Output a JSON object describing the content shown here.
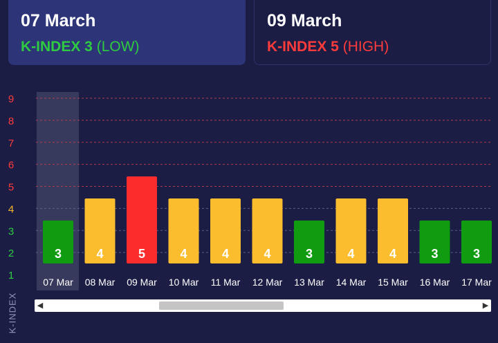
{
  "cards": [
    {
      "date": "07 March",
      "kp_label": "K-INDEX 3",
      "level": "(LOW)",
      "color": "#2ecc40"
    },
    {
      "date": "09 March",
      "kp_label": "K-INDEX 5",
      "level": "(HIGH)",
      "color": "#ff3b3b"
    }
  ],
  "y_axis_title": "K-INDEX",
  "chart_data": {
    "type": "bar",
    "categories": [
      "07 Mar",
      "08 Mar",
      "09 Mar",
      "10 Mar",
      "11 Mar",
      "12 Mar",
      "13 Mar",
      "14 Mar",
      "15 Mar",
      "16 Mar",
      "17 Mar"
    ],
    "values": [
      3,
      4,
      5,
      4,
      4,
      4,
      3,
      4,
      4,
      3,
      3
    ],
    "ylim": [
      1,
      9
    ],
    "yticks": [
      1,
      2,
      3,
      4,
      5,
      6,
      7,
      8,
      9
    ],
    "ytick_colors": {
      "1": "#2ecc40",
      "2": "#2ecc40",
      "3": "#2ecc40",
      "4": "#f5b82e",
      "5": "#ff3b3b",
      "6": "#ff3b3b",
      "7": "#ff3b3b",
      "8": "#ff3b3b",
      "9": "#ff3b3b"
    },
    "bar_colors": {
      "low": "#109c10",
      "moderate": "#fbbd2e",
      "high": "#fb2c2c"
    },
    "highlighted_category": "07 Mar",
    "ylabel": "K-INDEX"
  }
}
